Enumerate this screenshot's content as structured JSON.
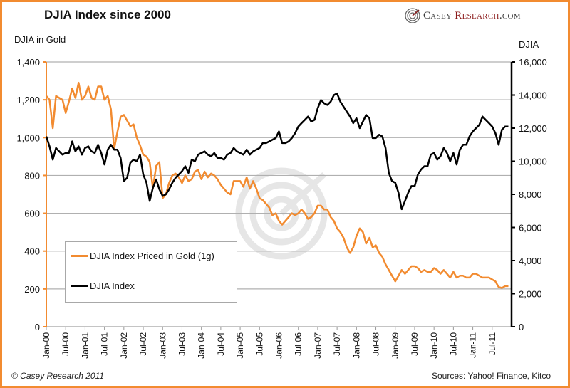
{
  "header": {
    "title": "DJIA Index since 2000",
    "logo_text_1": "Casey ",
    "logo_text_2": "Research",
    "logo_text_3": ".com"
  },
  "footer": {
    "copyright": "© Casey Research 2011",
    "sources": "Sources: Yahoo! Finance, Kitco"
  },
  "colors": {
    "frame": "#f28b30",
    "gold_series": "#f28b30",
    "djia_series": "#000000",
    "grid": "#b0b0b0"
  },
  "chart_data": {
    "type": "line",
    "title": "DJIA Index since 2000",
    "ylabel_left": "DJIA in Gold",
    "ylabel_right": "DJIA",
    "xlabel": "",
    "ylim_left": [
      0,
      1400
    ],
    "ylim_right": [
      0,
      16000
    ],
    "yticks_left": [
      "0",
      "200",
      "400",
      "600",
      "800",
      "1,000",
      "1,200",
      "1,400"
    ],
    "yticks_right": [
      "0",
      "2,000",
      "4,000",
      "6,000",
      "8,000",
      "10,000",
      "12,000",
      "14,000",
      "16,000"
    ],
    "xticks": [
      "Jan-00",
      "Jul-00",
      "Jan-01",
      "Jul-01",
      "Jan-02",
      "Jul-02",
      "Jan-03",
      "Jul-03",
      "Jan-04",
      "Jul-04",
      "Jan-05",
      "Jul-05",
      "Jan-06",
      "Jul-06",
      "Jan-07",
      "Jul-07",
      "Jan-08",
      "Jul-08",
      "Jan-09",
      "Jul-09",
      "Jan-10",
      "Jul-10",
      "Jan-11",
      "Jul-11"
    ],
    "x_range_months": [
      0,
      144
    ],
    "grid": true,
    "legend_position": "lower-left",
    "watermark": "Casey Research logo",
    "series": [
      {
        "name": "DJIA Index Priced in Gold (1g)",
        "axis": "left",
        "x_months": [
          0,
          1,
          2,
          3,
          4,
          5,
          6,
          7,
          8,
          9,
          10,
          11,
          12,
          13,
          14,
          15,
          16,
          17,
          18,
          19,
          20,
          21,
          22,
          23,
          24,
          25,
          26,
          27,
          28,
          29,
          30,
          31,
          32,
          33,
          34,
          35,
          36,
          37,
          38,
          39,
          40,
          41,
          42,
          43,
          44,
          45,
          46,
          47,
          48,
          49,
          50,
          51,
          52,
          53,
          54,
          55,
          56,
          57,
          58,
          59,
          60,
          61,
          62,
          63,
          64,
          65,
          66,
          67,
          68,
          69,
          70,
          71,
          72,
          73,
          74,
          75,
          76,
          77,
          78,
          79,
          80,
          81,
          82,
          83,
          84,
          85,
          86,
          87,
          88,
          89,
          90,
          91,
          92,
          93,
          94,
          95,
          96,
          97,
          98,
          99,
          100,
          101,
          102,
          103,
          104,
          105,
          106,
          107,
          108,
          109,
          110,
          111,
          112,
          113,
          114,
          115,
          116,
          117,
          118,
          119,
          120,
          121,
          122,
          123,
          124,
          125,
          126,
          127,
          128,
          129,
          130,
          131,
          132,
          133,
          134,
          135,
          136,
          137,
          138,
          139,
          140,
          141,
          142,
          143
        ],
        "values": [
          1220,
          1200,
          1050,
          1220,
          1210,
          1200,
          1130,
          1190,
          1260,
          1210,
          1290,
          1200,
          1220,
          1270,
          1210,
          1200,
          1270,
          1270,
          1200,
          1220,
          1150,
          940,
          1030,
          1110,
          1120,
          1090,
          1060,
          1070,
          1000,
          960,
          910,
          900,
          870,
          730,
          850,
          870,
          680,
          700,
          760,
          800,
          810,
          790,
          760,
          800,
          770,
          780,
          820,
          830,
          780,
          820,
          790,
          810,
          800,
          780,
          750,
          730,
          710,
          700,
          770,
          770,
          770,
          740,
          790,
          730,
          770,
          730,
          680,
          670,
          650,
          630,
          590,
          600,
          560,
          540,
          560,
          580,
          600,
          590,
          600,
          620,
          600,
          570,
          580,
          600,
          640,
          640,
          620,
          620,
          580,
          560,
          520,
          500,
          470,
          420,
          390,
          420,
          480,
          520,
          500,
          440,
          470,
          420,
          430,
          390,
          370,
          330,
          300,
          270,
          240,
          270,
          300,
          280,
          300,
          320,
          320,
          310,
          290,
          300,
          290,
          290,
          310,
          300,
          280,
          300,
          280,
          260,
          290,
          260,
          270,
          270,
          260,
          260,
          280,
          280,
          270,
          260,
          260,
          260,
          250,
          240,
          210,
          205,
          215,
          215
        ]
      },
      {
        "name": "DJIA Index",
        "axis": "right",
        "x_months": [
          0,
          1,
          2,
          3,
          4,
          5,
          6,
          7,
          8,
          9,
          10,
          11,
          12,
          13,
          14,
          15,
          16,
          17,
          18,
          19,
          20,
          21,
          22,
          23,
          24,
          25,
          26,
          27,
          28,
          29,
          30,
          31,
          32,
          33,
          34,
          35,
          36,
          37,
          38,
          39,
          40,
          41,
          42,
          43,
          44,
          45,
          46,
          47,
          48,
          49,
          50,
          51,
          52,
          53,
          54,
          55,
          56,
          57,
          58,
          59,
          60,
          61,
          62,
          63,
          64,
          65,
          66,
          67,
          68,
          69,
          70,
          71,
          72,
          73,
          74,
          75,
          76,
          77,
          78,
          79,
          80,
          81,
          82,
          83,
          84,
          85,
          86,
          87,
          88,
          89,
          90,
          91,
          92,
          93,
          94,
          95,
          96,
          97,
          98,
          99,
          100,
          101,
          102,
          103,
          104,
          105,
          106,
          107,
          108,
          109,
          110,
          111,
          112,
          113,
          114,
          115,
          116,
          117,
          118,
          119,
          120,
          121,
          122,
          123,
          124,
          125,
          126,
          127,
          128,
          129,
          130,
          131,
          132,
          133,
          134,
          135,
          136,
          137,
          138,
          139,
          140,
          141,
          142,
          143
        ],
        "values": [
          11500,
          10900,
          10100,
          10800,
          10600,
          10400,
          10500,
          10500,
          11200,
          10600,
          10900,
          10400,
          10800,
          10900,
          10600,
          10500,
          11000,
          10500,
          9800,
          10700,
          11000,
          10700,
          10700,
          10200,
          8800,
          9000,
          9900,
          10100,
          10000,
          10400,
          9200,
          8700,
          7600,
          8400,
          8900,
          8300,
          7900,
          8000,
          8300,
          8700,
          9000,
          9200,
          9400,
          9700,
          9300,
          10100,
          10000,
          10400,
          10500,
          10600,
          10400,
          10300,
          10500,
          10200,
          10200,
          10100,
          10400,
          10500,
          10800,
          10600,
          10500,
          10400,
          10700,
          10400,
          10600,
          10700,
          10800,
          11100,
          11100,
          11200,
          11300,
          11400,
          11800,
          11100,
          11100,
          11200,
          11400,
          11700,
          12100,
          12300,
          12500,
          12700,
          12400,
          12500,
          13200,
          13700,
          13500,
          13400,
          13600,
          14000,
          14100,
          13600,
          13300,
          13000,
          12700,
          12300,
          12600,
          12000,
          12400,
          12800,
          12600,
          11400,
          11400,
          11600,
          11500,
          10800,
          9300,
          8800,
          8700,
          8100,
          7100,
          7600,
          8100,
          8500,
          8500,
          9200,
          9500,
          9700,
          9700,
          10400,
          10500,
          10100,
          10300,
          10800,
          10500,
          10000,
          10500,
          9800,
          10700,
          11000,
          11000,
          11500,
          11800,
          12000,
          12200,
          12700,
          12500,
          12300,
          12100,
          11700,
          11000,
          11900,
          12100,
          12100
        ]
      }
    ]
  }
}
